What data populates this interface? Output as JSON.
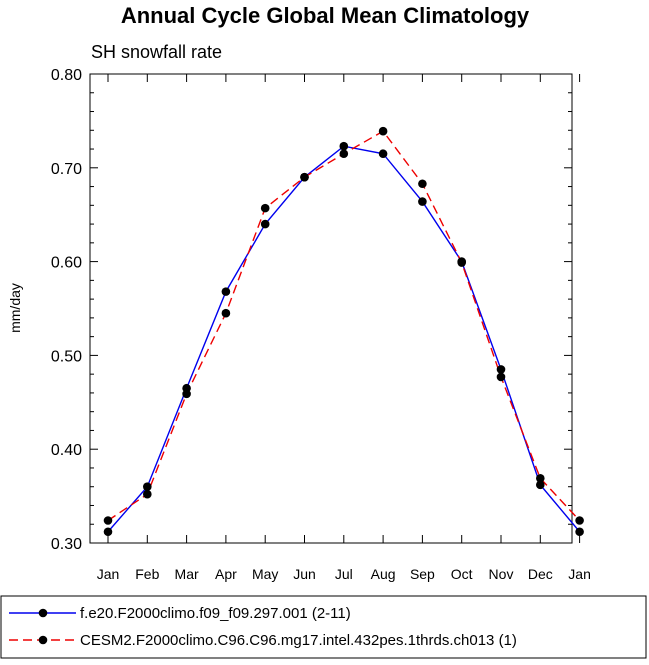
{
  "chart_data": {
    "type": "line",
    "title": "Annual Cycle Global Mean Climatology",
    "subtitle": "SH snowfall rate",
    "xlabel": "",
    "ylabel": "mm/day",
    "ylim": [
      0.3,
      0.8
    ],
    "yticks": [
      "0.30",
      "0.40",
      "0.50",
      "0.60",
      "0.70",
      "0.80"
    ],
    "categories": [
      "Jan",
      "Feb",
      "Mar",
      "Apr",
      "May",
      "Jun",
      "Jul",
      "Aug",
      "Sep",
      "Oct",
      "Nov",
      "Dec",
      "Jan"
    ],
    "series": [
      {
        "name": "f.e20.F2000climo.f09_f09.297.001 (2-11)",
        "color": "#0000ee",
        "dash": "solid",
        "values": [
          0.312,
          0.36,
          0.465,
          0.568,
          0.64,
          0.69,
          0.723,
          0.715,
          0.664,
          0.6,
          0.485,
          0.362,
          0.312
        ]
      },
      {
        "name": "CESM2.F2000climo.C96.C96.mg17.intel.432pes.1thrds.ch013 (1)",
        "color": "#ee0000",
        "dash": "dashed",
        "values": [
          0.324,
          0.352,
          0.459,
          0.545,
          0.657,
          0.69,
          0.715,
          0.739,
          0.683,
          0.599,
          0.477,
          0.369,
          0.324
        ]
      }
    ],
    "legend_position": "bottom"
  }
}
